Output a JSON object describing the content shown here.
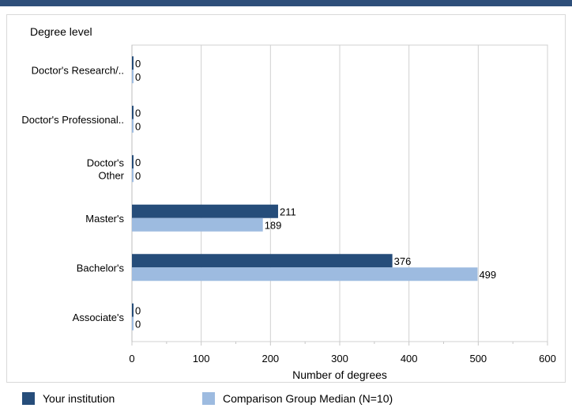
{
  "chart_data": {
    "type": "bar",
    "orientation": "horizontal",
    "ylabel": "Degree level",
    "xlabel": "Number of degrees",
    "categories": [
      "Doctor's  Research/..",
      "Doctor's  Professional..",
      "Doctor's Other",
      "Master's",
      "Bachelor's",
      "Associate's"
    ],
    "category_lines": [
      [
        "Doctor's  Research/.."
      ],
      [
        "Doctor's  Professional.."
      ],
      [
        "Doctor's",
        "Other"
      ],
      [
        "Master's"
      ],
      [
        "Bachelor's"
      ],
      [
        "Associate's"
      ]
    ],
    "series": [
      {
        "name": "Your institution",
        "color": "#264d7a",
        "values": [
          0,
          0,
          0,
          211,
          376,
          0
        ]
      },
      {
        "name": "Comparison Group Median (N=10)",
        "color": "#9dbbe0",
        "values": [
          0,
          0,
          0,
          189,
          499,
          0
        ]
      }
    ],
    "xlim": [
      0,
      600
    ],
    "xticks": [
      "0",
      "100",
      "200",
      "300",
      "400",
      "500",
      "600"
    ],
    "grid": true,
    "legend_position": "bottom"
  }
}
